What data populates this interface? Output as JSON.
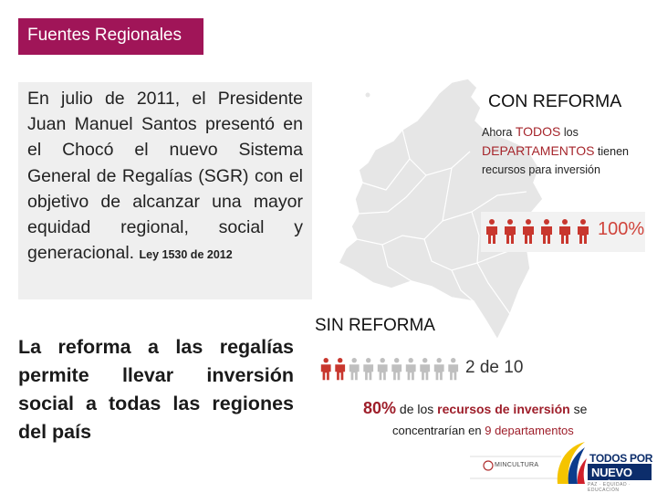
{
  "header": {
    "title": "Fuentes Regionales"
  },
  "intro": {
    "text": "En julio de 2011, el Presidente Juan Manuel Santos presentó en el Chocó el nuevo Sistema General de Regalías (SGR) con el objetivo de alcanzar una mayor equidad regional, social y generacional.",
    "law": "Ley 1530 de 2012"
  },
  "reform_statement": "La reforma a las regalías permite llevar inversión social a todas las regiones del país",
  "con_reforma": {
    "title": "CON REFORMA",
    "desc_1": "Ahora",
    "desc_todos": "TODOS",
    "desc_2": "los",
    "desc_departamentos": "DEPARTAMENTOS",
    "desc_3": "tienen",
    "desc_4": "recursos para inversión",
    "percent": "100%",
    "filled_people": 6,
    "total_people": 6
  },
  "sin_reforma": {
    "title": "SIN REFORMA",
    "ratio_label": "2 de 10",
    "filled_people": 2,
    "total_people": 10
  },
  "stat": {
    "percent": "80%",
    "text_1": "de los",
    "text_2": "recursos de inversión",
    "text_3": "se",
    "text_4": "concentrarían en",
    "number": "9",
    "text_5": "departamentos"
  },
  "logos": {
    "mincultura": "MINCULTURA",
    "tpu_line1": "TODOS POR UN",
    "tpu_line2": "NUEVO PAÍS",
    "tpu_line3": "PAZ · EQUIDAD · EDUCACIÓN"
  },
  "colors": {
    "title_bar": "#a01558",
    "accent_red": "#a6262c",
    "people_filled": "#c8372e",
    "people_empty": "#bfbfbf",
    "map": "#e6e6e6"
  }
}
